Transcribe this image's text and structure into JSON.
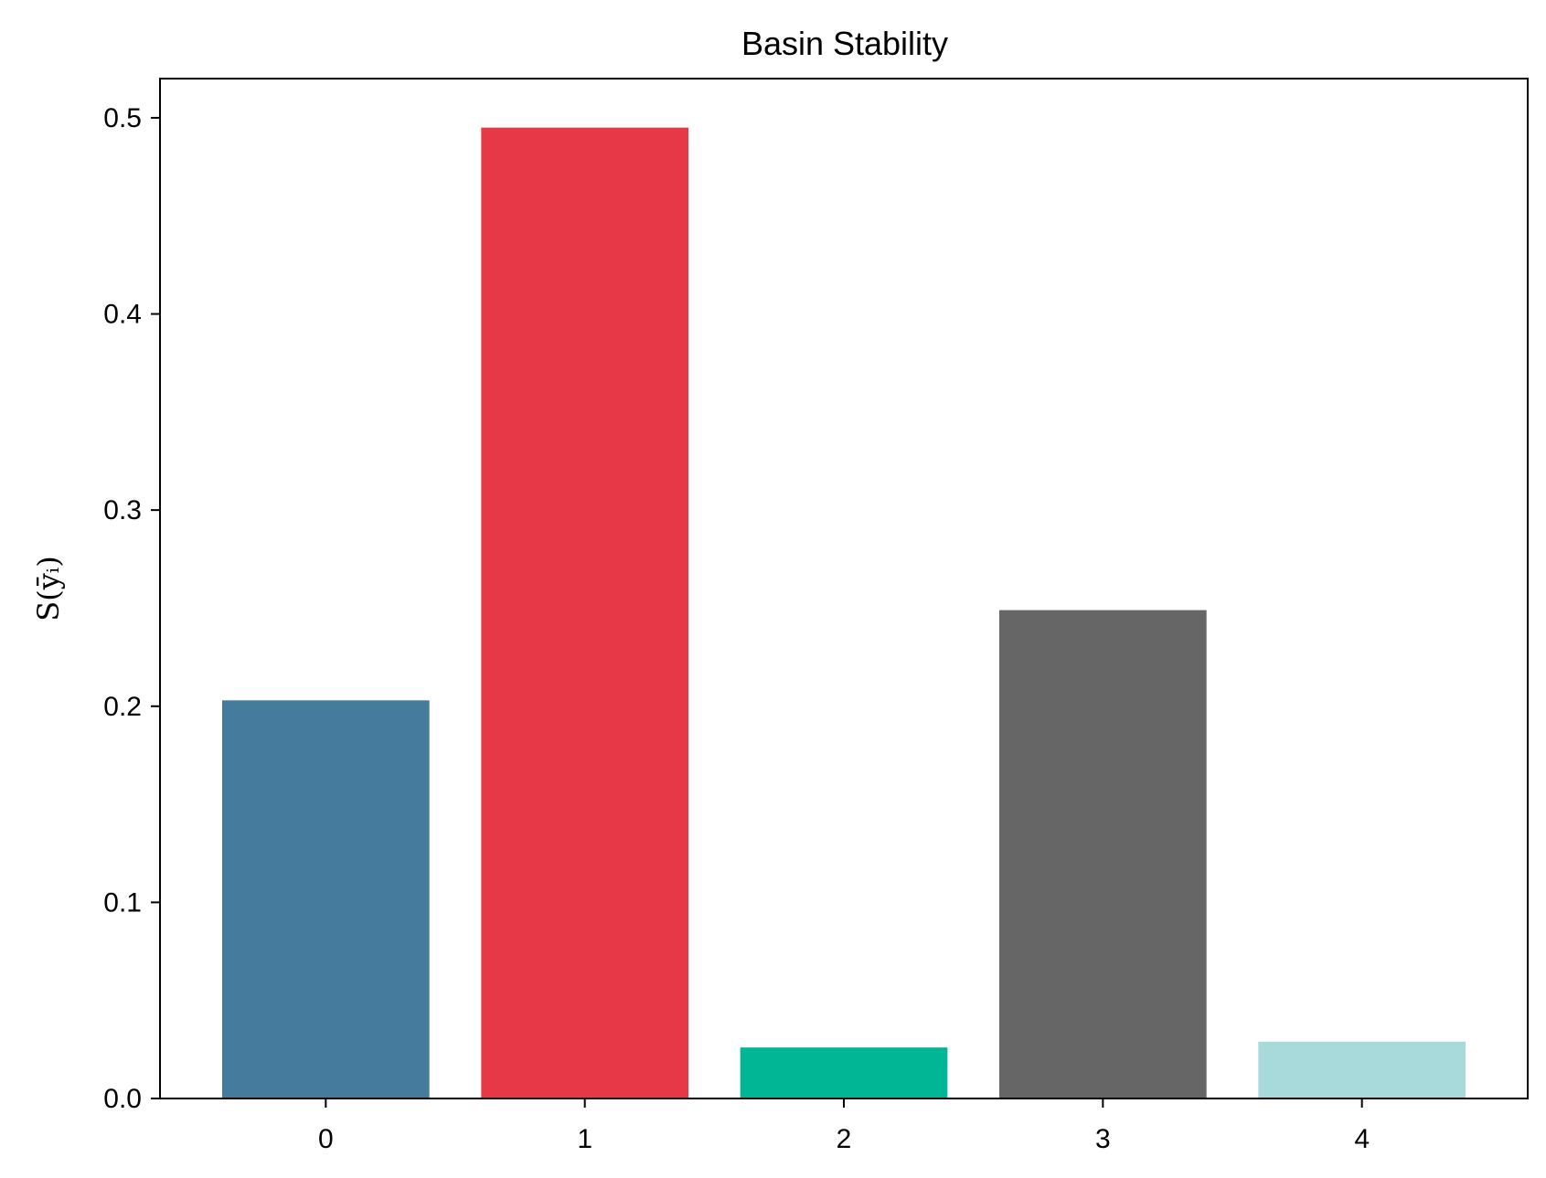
{
  "chart_data": {
    "type": "bar",
    "title": "Basin Stability",
    "xlabel": "",
    "ylabel": "S(ȳᵢ)",
    "categories": [
      "0",
      "1",
      "2",
      "3",
      "4"
    ],
    "values": [
      0.203,
      0.495,
      0.026,
      0.249,
      0.029
    ],
    "colors": [
      "#457b9d",
      "#e63946",
      "#00b695",
      "#666666",
      "#a8dadc"
    ],
    "ylim": [
      0,
      0.52
    ],
    "xlim": [
      -0.64,
      4.64
    ],
    "yticks": [
      0.0,
      0.1,
      0.2,
      0.3,
      0.4,
      0.5
    ],
    "ytick_labels": [
      "0.0",
      "0.1",
      "0.2",
      "0.3",
      "0.4",
      "0.5"
    ],
    "xtick_labels": [
      "0",
      "1",
      "2",
      "3",
      "4"
    ],
    "bar_width": 0.8,
    "grid": false,
    "legend": "none"
  }
}
